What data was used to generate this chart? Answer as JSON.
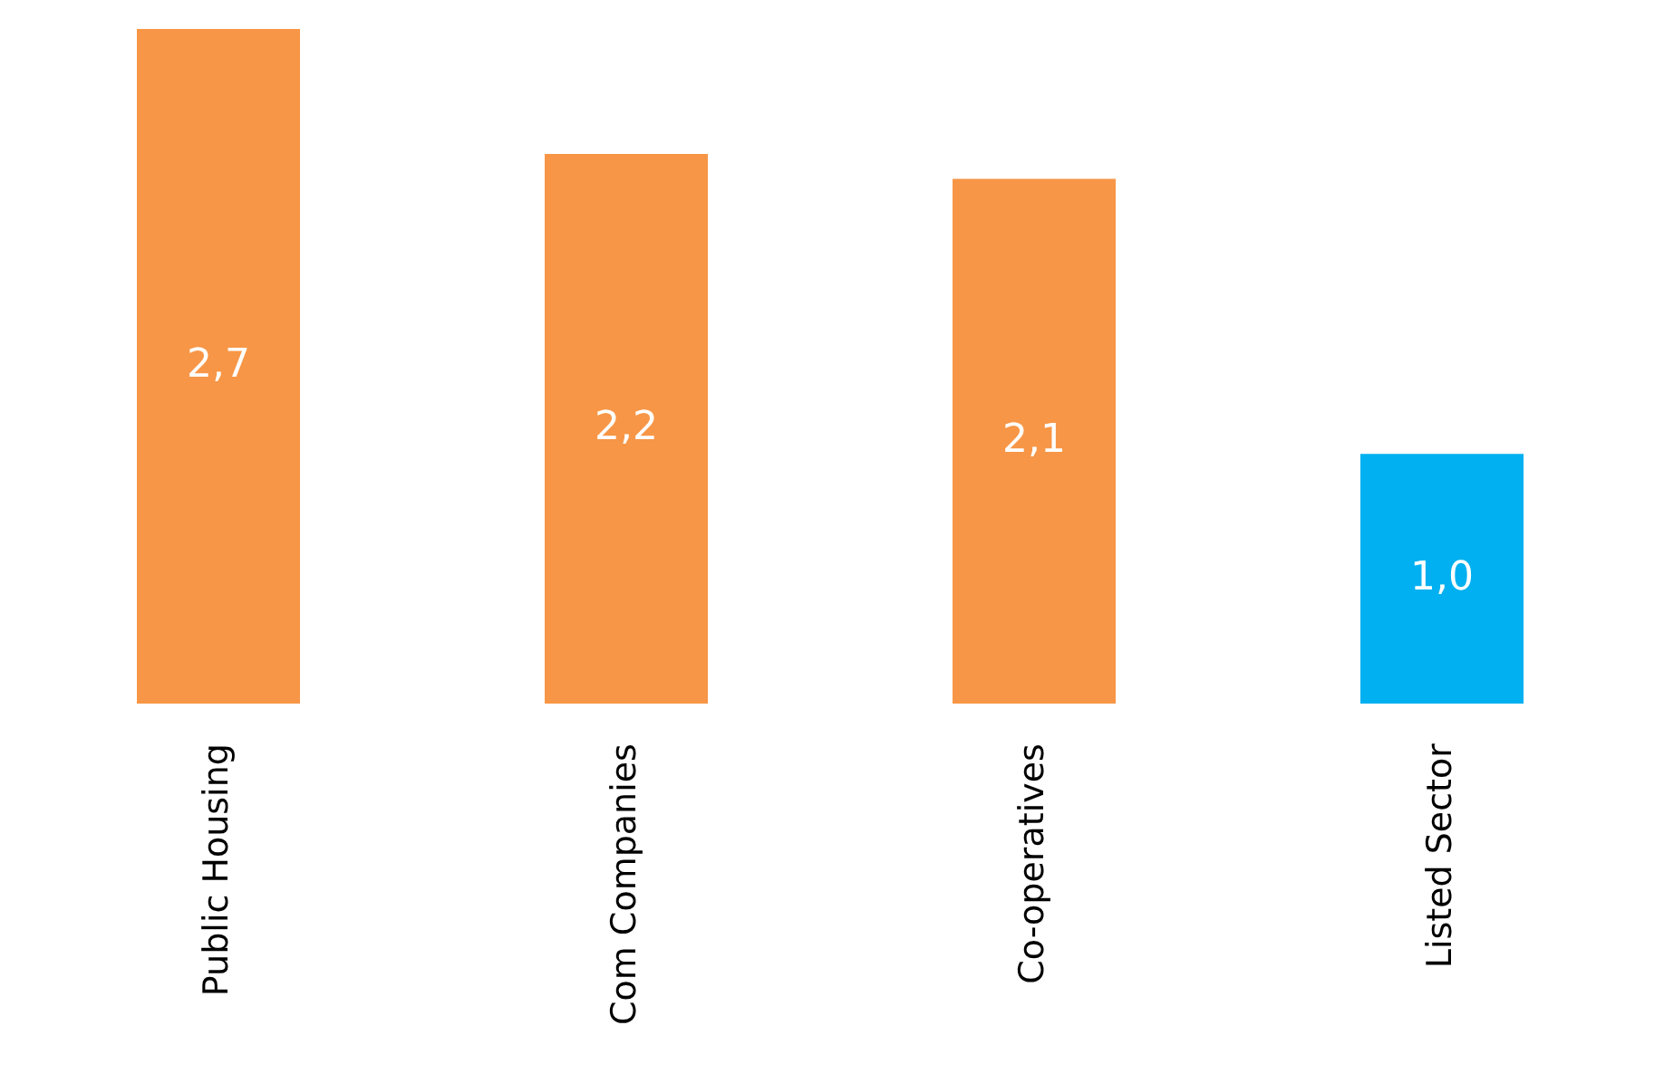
{
  "chart_data": {
    "type": "bar",
    "categories": [
      "Public Housing",
      "Com Companies",
      "Co-operatives",
      "Listed Sector"
    ],
    "values": [
      2.7,
      2.2,
      2.1,
      1.0
    ],
    "colors": [
      "#f79646",
      "#f79646",
      "#f79646",
      "#00b0f0"
    ],
    "value_labels": [
      "2,7",
      "2,2",
      "2,1",
      "1,0"
    ],
    "ylim": [
      0,
      2.7
    ],
    "grid": false,
    "legend": false
  }
}
